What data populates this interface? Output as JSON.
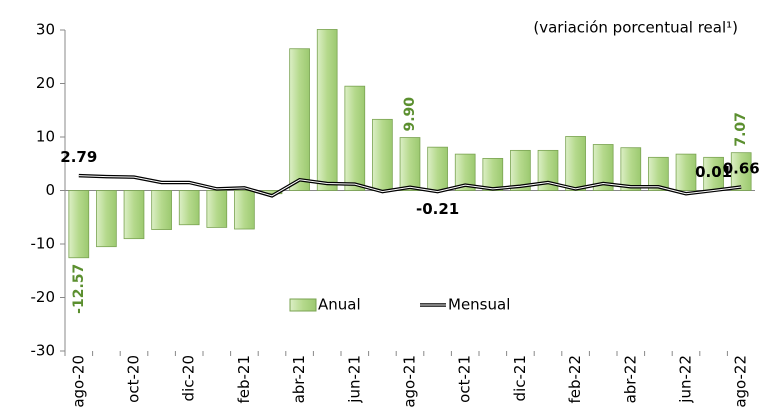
{
  "chart_data": {
    "type": "bar-line",
    "annotation": "(variación porcentual real¹)",
    "categories": [
      "ago-20",
      null,
      "oct-20",
      null,
      "dic-20",
      null,
      "feb-21",
      null,
      "abr-21",
      null,
      "jun-21",
      null,
      "ago-21",
      null,
      "oct-21",
      null,
      "dic-21",
      null,
      "feb-22",
      null,
      "abr-22",
      null,
      "jun-22",
      null,
      "ago-22"
    ],
    "series": [
      {
        "name": "Anual",
        "type": "bar",
        "color": "#b5d98c",
        "edge_color": "#7aa352",
        "label_color": "#5b8f2f",
        "values": [
          -12.57,
          -10.5,
          -9,
          -7.3,
          -6.4,
          -6.9,
          -7.2,
          -0.6,
          26.5,
          30.1,
          19.5,
          13.3,
          9.9,
          8.1,
          6.8,
          6.0,
          7.5,
          7.5,
          10.1,
          8.6,
          8.0,
          6.2,
          6.8,
          6.2,
          7.07
        ],
        "value_labels": [
          "-12.57",
          null,
          null,
          null,
          null,
          null,
          null,
          null,
          null,
          null,
          null,
          null,
          "9.90",
          null,
          null,
          null,
          null,
          null,
          null,
          null,
          null,
          null,
          null,
          null,
          "7.07"
        ]
      },
      {
        "name": "Mensual",
        "type": "line",
        "color": "#000000",
        "values": [
          2.79,
          2.6,
          2.5,
          1.5,
          1.5,
          0.3,
          0.5,
          -1.0,
          2.0,
          1.3,
          1.2,
          -0.2,
          0.6,
          -0.21,
          1.0,
          0.3,
          0.8,
          1.5,
          0.3,
          1.3,
          0.7,
          0.7,
          -0.6,
          0.01,
          0.66
        ],
        "value_labels": [
          "2.79",
          null,
          null,
          null,
          null,
          null,
          null,
          null,
          null,
          null,
          null,
          null,
          null,
          "-0.21",
          null,
          null,
          null,
          null,
          null,
          null,
          null,
          null,
          null,
          "0.01",
          "0.66"
        ]
      }
    ],
    "ylim": [
      -30,
      30
    ],
    "yticks": [
      -30,
      -20,
      -10,
      0,
      10,
      20,
      30
    ],
    "grid": false,
    "legend": "lower center"
  }
}
